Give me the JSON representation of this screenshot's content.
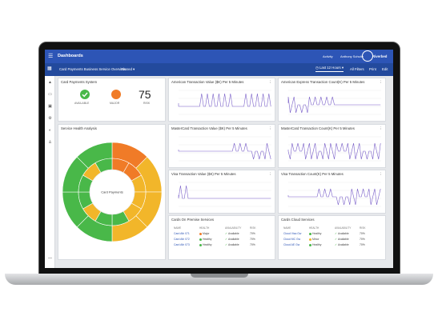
{
  "app": {
    "title": "Dashboards",
    "activity": "Activity",
    "user": "Anthony Schultz",
    "brand": "Riverbed"
  },
  "toolbar": {
    "breadcrumb": "Card Payments Business Service Overview",
    "shared": "Shared",
    "time_range": "Last 12 Hours",
    "filters": "All Filters",
    "print": "Print",
    "edit": "Edit"
  },
  "system": {
    "title": "Card Payments System",
    "status1": "AVAILABLE",
    "status2": "MAJOR",
    "risk_value": "75",
    "risk_label": "RISK"
  },
  "health": {
    "title": "Service Health Analysis",
    "center": "Card Payments"
  },
  "charts": [
    {
      "title": "American Transaction Value ($K) Per 5 Minutes"
    },
    {
      "title": "American Express Transaction Count(K) Per 5 Minutes"
    },
    {
      "title": "MasterCard Transaction Value ($K) Per 5 Minutes"
    },
    {
      "title": "MasterCard Transaction Count(K) Per 5 Minutes"
    },
    {
      "title": "Visa Transaction Value ($K) Per 5 Minutes"
    },
    {
      "title": "Visa Transaction Count(K) Per 5 Minutes"
    }
  ],
  "onprem": {
    "title": "Cards On Premise Services",
    "cols": [
      "NAME",
      "HEALTH",
      "AVAILABILITY",
      "RISK"
    ],
    "rows": [
      [
        "Card Ath 071",
        "Major",
        "Available",
        "70%"
      ],
      [
        "Card Ath 072",
        "Healthy",
        "Available",
        "70%"
      ],
      [
        "Card Ath 073",
        "Healthy",
        "Available",
        "70%"
      ]
    ]
  },
  "cloud": {
    "title": "Cards Cloud Services",
    "cols": [
      "NAME",
      "HEALTH",
      "AVAILABILITY",
      "RISK"
    ],
    "rows": [
      [
        "Cloud Visa Gw",
        "Healthy",
        "Available",
        "70%"
      ],
      [
        "Cloud MC Gw",
        "Minor",
        "Available",
        "70%"
      ],
      [
        "Cloud AE Gw",
        "Healthy",
        "Available",
        "70%"
      ]
    ]
  },
  "colors": {
    "accent": "#2d55b6",
    "healthy": "#49b849",
    "minor": "#f2b62a",
    "major": "#f07b27",
    "line": "#7b61c9"
  }
}
